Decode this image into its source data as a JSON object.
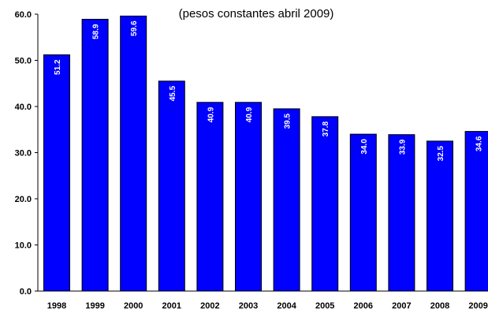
{
  "chart_data": {
    "type": "bar",
    "title": "",
    "subtitle": "(pesos constantes abril 2009)",
    "xlabel": "",
    "ylabel": "",
    "categories": [
      "1998",
      "1999",
      "2000",
      "2001",
      "2002",
      "2003",
      "2004",
      "2005",
      "2006",
      "2007",
      "2008",
      "2009"
    ],
    "values": [
      51.2,
      58.9,
      59.6,
      45.5,
      40.9,
      40.9,
      39.5,
      37.8,
      34.0,
      33.9,
      32.5,
      34.6
    ],
    "data_labels": [
      "51.2",
      "58.9",
      "59.6",
      "45.5",
      "40.9",
      "40.9",
      "39.5",
      "37.8",
      "34.0",
      "33.9",
      "32.5",
      "34.6"
    ],
    "yticks": [
      "0.0",
      "10.0",
      "20.0",
      "30.0",
      "40.0",
      "50.0",
      "60.0"
    ],
    "ytick_values": [
      0,
      10,
      20,
      30,
      40,
      50,
      60
    ],
    "ylim": [
      0,
      60
    ],
    "grid": false,
    "legend": "none",
    "bar_color": "#0000ff",
    "bar_edge_color": "#000000",
    "label_color": "#ffffff"
  }
}
